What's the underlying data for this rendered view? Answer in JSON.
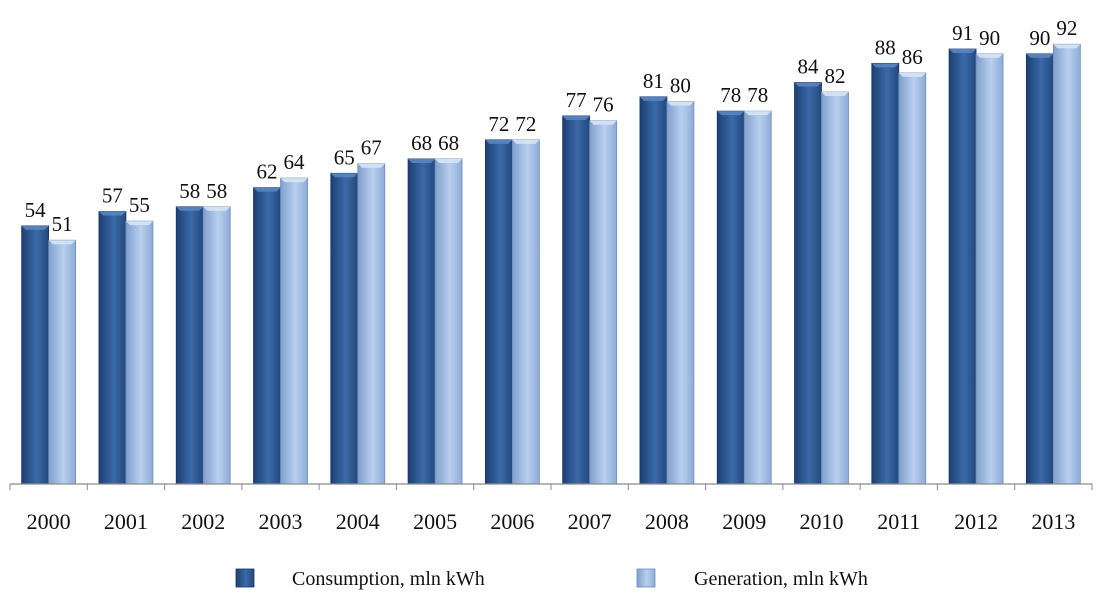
{
  "chart_data": {
    "type": "bar",
    "title": "",
    "xlabel": "",
    "ylabel": "",
    "ylim": [
      0,
      95
    ],
    "grid": false,
    "legend_position": "bottom",
    "categories": [
      "2000",
      "2001",
      "2002",
      "2003",
      "2004",
      "2005",
      "2006",
      "2007",
      "2008",
      "2009",
      "2010",
      "2011",
      "2012",
      "2013"
    ],
    "series": [
      {
        "name": "Consumption, mln kWh",
        "color": "#2e5a94",
        "values": [
          54,
          57,
          58,
          62,
          65,
          68,
          72,
          77,
          81,
          78,
          84,
          88,
          91,
          90
        ]
      },
      {
        "name": "Generation, mln kWh",
        "color": "#9db9e0",
        "values": [
          51,
          55,
          58,
          64,
          67,
          68,
          72,
          76,
          80,
          78,
          82,
          86,
          90,
          92
        ]
      }
    ]
  }
}
